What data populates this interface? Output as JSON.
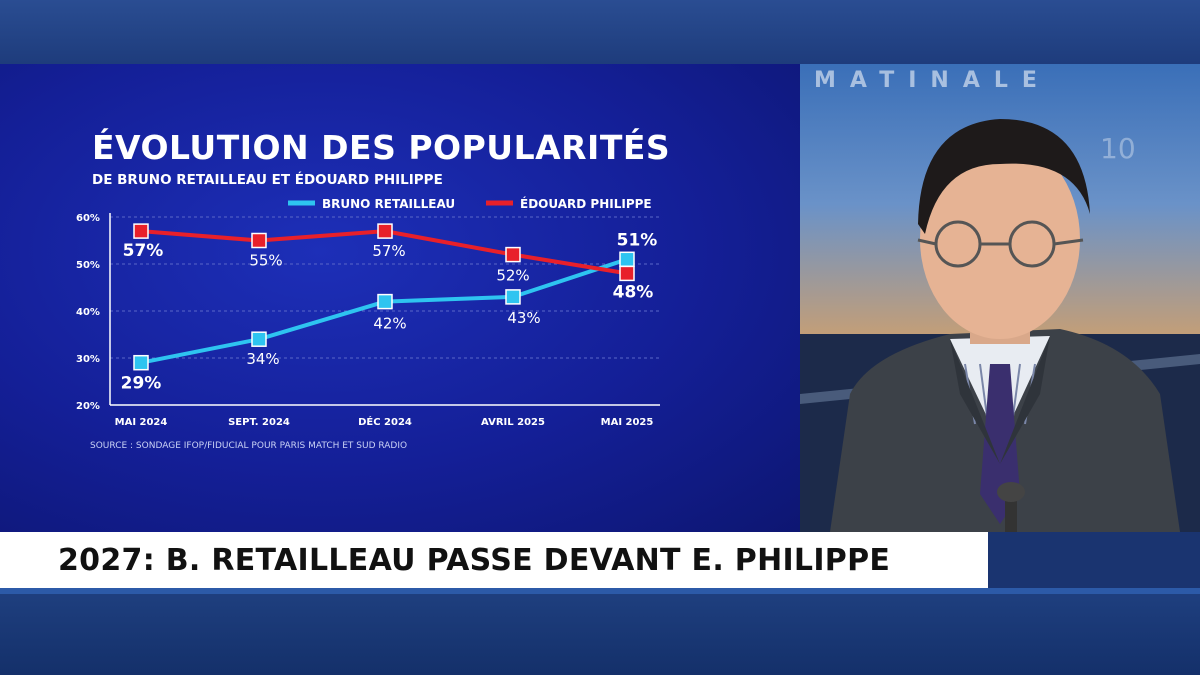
{
  "chart_data": {
    "type": "line",
    "title": "ÉVOLUTION DES POPULARITÉS",
    "subtitle": "DE BRUNO RETAILLEAU ET ÉDOUARD PHILIPPE",
    "categories": [
      "MAI 2024",
      "SEPT. 2024",
      "DÉC 2024",
      "AVRIL 2025",
      "MAI 2025"
    ],
    "y_ticks": [
      "60%",
      "50%",
      "40%",
      "30%",
      "20%"
    ],
    "ylim": [
      20,
      60
    ],
    "grid": true,
    "legend_position": "top-right",
    "series": [
      {
        "name": "BRUNO RETAILLEAU",
        "color": "#2ec4f0",
        "values": [
          29,
          34,
          42,
          43,
          51
        ],
        "labels": [
          "29%",
          "34%",
          "42%",
          "43%",
          "51%"
        ]
      },
      {
        "name": "ÉDOUARD PHILIPPE",
        "color": "#e8202a",
        "values": [
          57,
          55,
          57,
          52,
          48
        ],
        "labels": [
          "57%",
          "55%",
          "57%",
          "52%",
          "48%"
        ]
      }
    ],
    "source": "SOURCE : SONDAGE IFOP/FIDUCIAL POUR PARIS MATCH ET SUD RADIO"
  },
  "studio": {
    "logo_text": "MATINALE",
    "background_number": "10"
  },
  "headline": "2027: B. RETAILLEAU PASSE DEVANT E. PHILIPPE",
  "colors": {
    "panel_blue": "#141f97",
    "retailleau_cyan": "#2ec4f0",
    "philippe_red": "#e8202a"
  }
}
